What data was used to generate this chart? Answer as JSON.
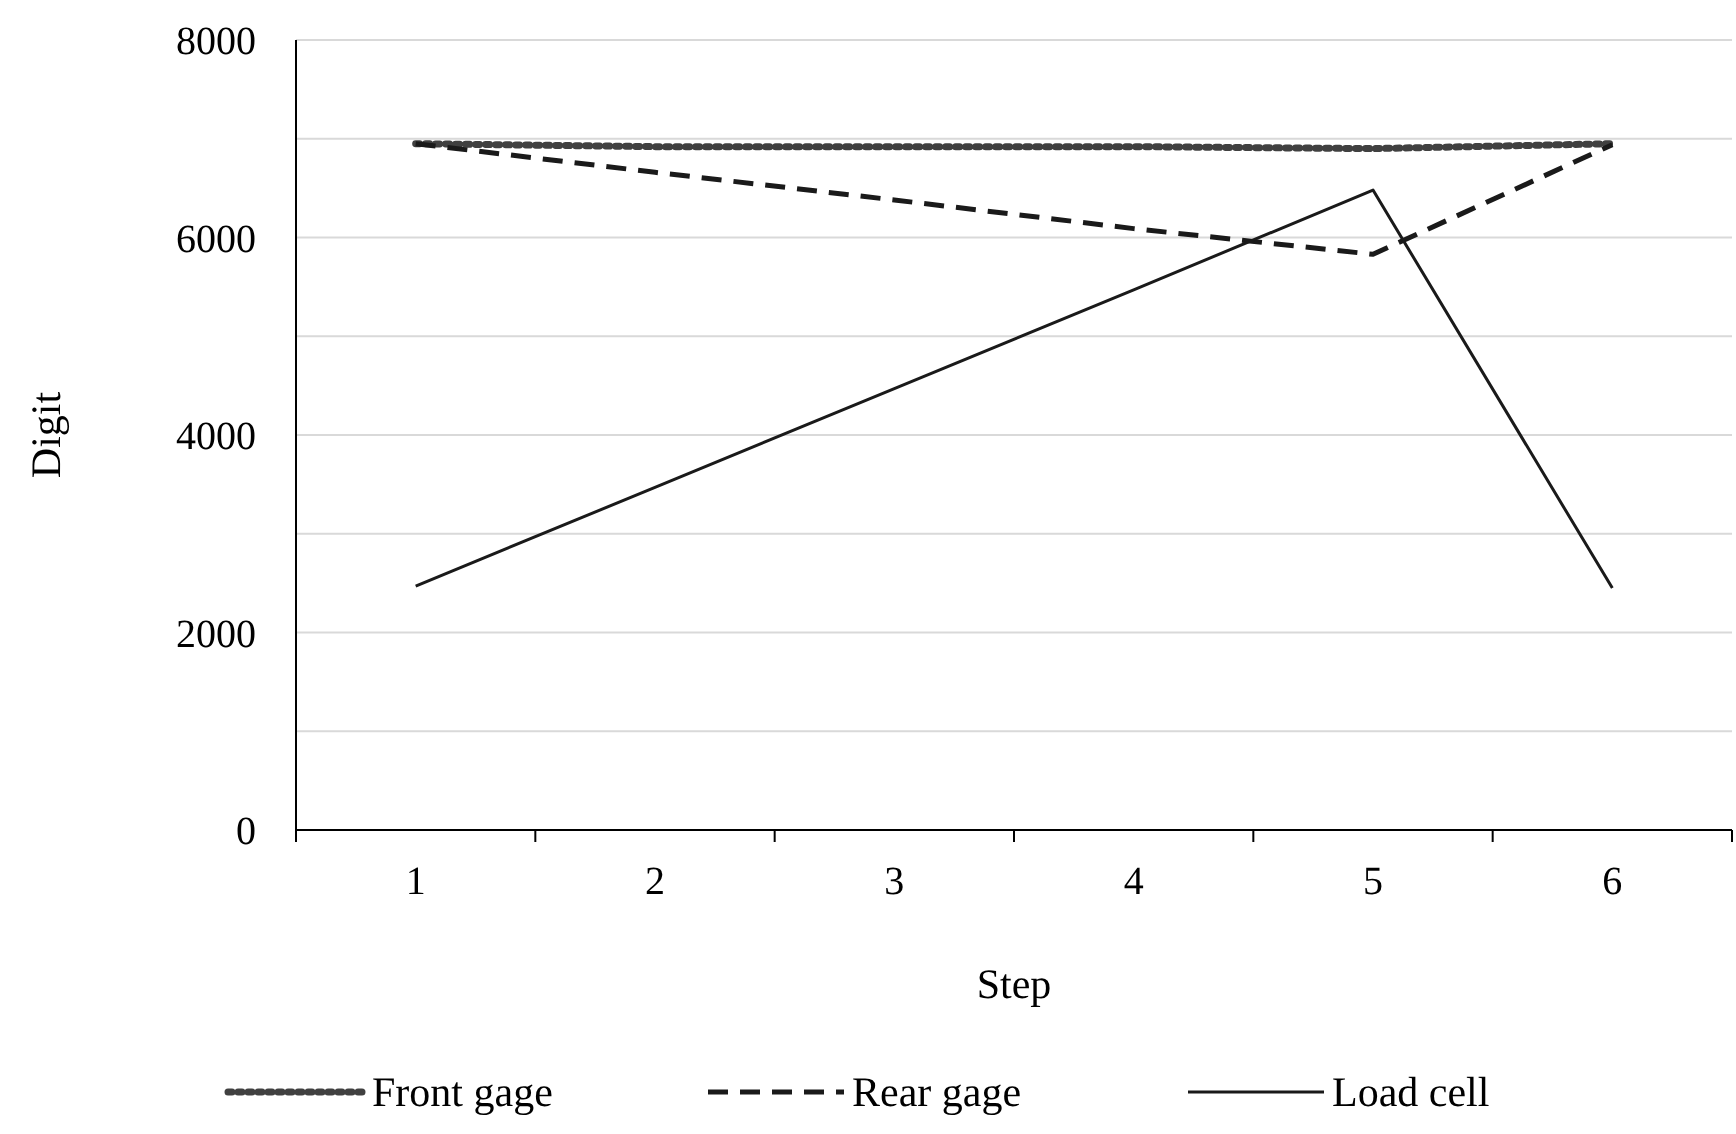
{
  "chart_data": {
    "type": "line",
    "xlabel": "Step",
    "ylabel": "Digit",
    "categories": [
      "1",
      "2",
      "3",
      "4",
      "5",
      "6"
    ],
    "ylim": [
      0,
      8000
    ],
    "yticks": [
      0,
      {
        "value": 1000,
        "label": null
      },
      2000,
      {
        "value": 3000,
        "label": null
      },
      4000,
      {
        "value": 5000,
        "label": null
      },
      6000,
      {
        "value": 7000,
        "label": null
      },
      8000
    ],
    "grid": "y",
    "legend": "bottom",
    "series": [
      {
        "name": "Front gage",
        "color": "#404040",
        "line_style": "dotted",
        "values": [
          6950,
          6920,
          6920,
          6920,
          6900,
          6950
        ]
      },
      {
        "name": "Rear gage",
        "color": "#1a1a1a",
        "line_style": "dashed",
        "values": [
          6950,
          6660,
          6380,
          6090,
          5830,
          6940
        ]
      },
      {
        "name": "Load cell",
        "color": "#1a1a1a",
        "line_style": "solid",
        "values": [
          2470,
          3470,
          4470,
          5470,
          6480,
          2450
        ]
      }
    ]
  }
}
